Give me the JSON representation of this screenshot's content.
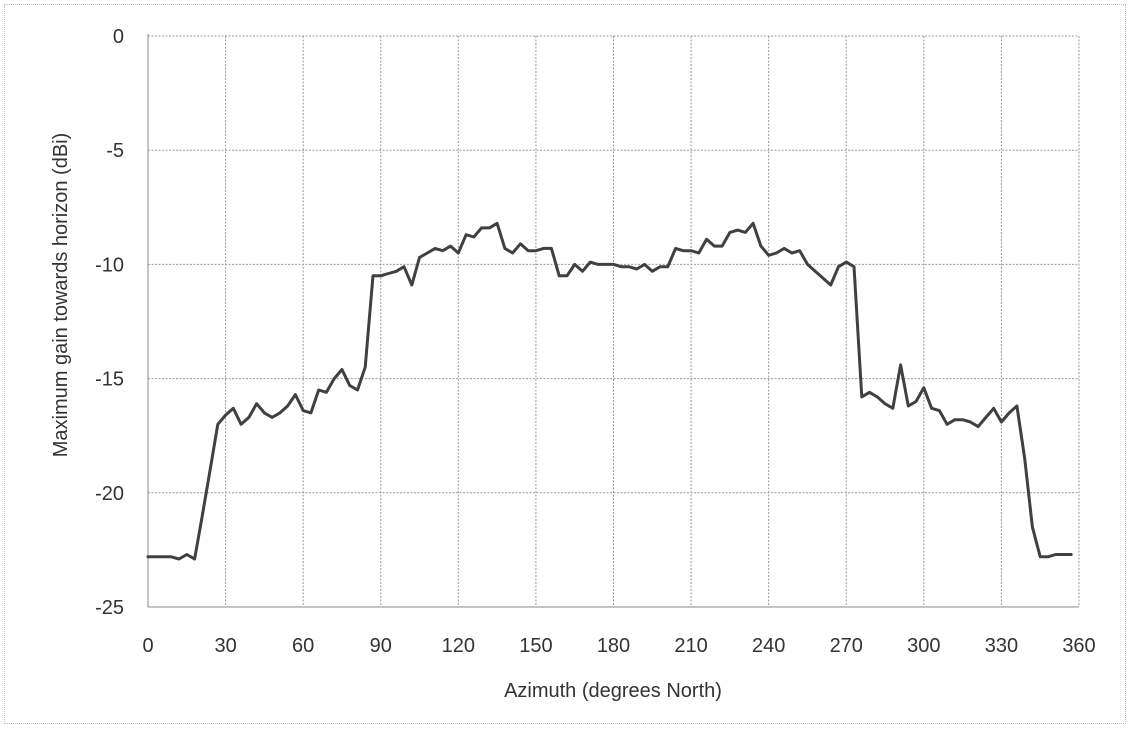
{
  "chart_data": {
    "type": "line",
    "title": "",
    "xlabel": "Azimuth (degrees North)",
    "ylabel": "Maximum gain towards horizon (dBi)",
    "xlim": [
      0,
      360
    ],
    "ylim": [
      -25,
      0
    ],
    "xticks": [
      0,
      30,
      60,
      90,
      120,
      150,
      180,
      210,
      240,
      270,
      300,
      330,
      360
    ],
    "yticks": [
      0,
      -5,
      -10,
      -15,
      -20,
      -25
    ],
    "grid": true,
    "legend": "none",
    "line_color": "#404040",
    "series": [
      {
        "x": [
          0,
          3,
          6,
          9,
          12,
          15,
          18,
          21,
          24,
          27,
          30,
          33,
          36,
          39,
          42,
          45,
          48,
          51,
          54,
          57,
          60,
          63,
          66,
          69,
          72,
          75,
          78,
          81,
          84,
          87,
          90,
          93,
          96,
          99,
          102,
          105,
          108,
          111,
          114,
          117,
          120,
          123,
          126,
          129,
          132,
          135,
          138,
          141,
          144,
          147,
          150,
          153,
          156,
          159,
          162,
          165,
          168,
          171,
          174,
          177,
          180,
          183,
          186,
          189,
          192,
          195,
          198,
          201,
          204,
          207,
          210,
          213,
          216,
          219,
          222,
          225,
          228,
          231,
          234,
          237,
          240,
          243,
          246,
          249,
          252,
          255,
          258,
          261,
          264,
          267,
          270,
          273,
          276,
          279,
          282,
          285,
          288,
          291,
          294,
          297,
          300,
          303,
          306,
          309,
          312,
          315,
          318,
          321,
          324,
          327,
          330,
          333,
          336,
          339,
          342,
          345,
          348,
          351,
          354,
          357
        ],
        "values": [
          -22.8,
          -22.8,
          -22.8,
          -22.8,
          -22.9,
          -22.7,
          -22.9,
          -21.0,
          -19.0,
          -17.0,
          -16.6,
          -16.3,
          -17.0,
          -16.7,
          -16.1,
          -16.5,
          -16.7,
          -16.5,
          -16.2,
          -15.7,
          -16.4,
          -16.5,
          -15.5,
          -15.6,
          -15.0,
          -14.6,
          -15.3,
          -15.5,
          -14.5,
          -10.5,
          -10.5,
          -10.4,
          -10.3,
          -10.1,
          -10.9,
          -9.7,
          -9.5,
          -9.3,
          -9.4,
          -9.2,
          -9.5,
          -8.7,
          -8.8,
          -8.4,
          -8.4,
          -8.2,
          -9.3,
          -9.5,
          -9.1,
          -9.4,
          -9.4,
          -9.3,
          -9.3,
          -10.5,
          -10.5,
          -10.0,
          -10.3,
          -9.9,
          -10.0,
          -10.0,
          -10.0,
          -10.1,
          -10.1,
          -10.2,
          -10.0,
          -10.3,
          -10.1,
          -10.1,
          -9.3,
          -9.4,
          -9.4,
          -9.5,
          -8.9,
          -9.2,
          -9.2,
          -8.6,
          -8.5,
          -8.6,
          -8.2,
          -9.2,
          -9.6,
          -9.5,
          -9.3,
          -9.5,
          -9.4,
          -10.0,
          -10.3,
          -10.6,
          -10.9,
          -10.1,
          -9.9,
          -10.1,
          -15.8,
          -15.6,
          -15.8,
          -16.1,
          -16.3,
          -14.4,
          -16.2,
          -16.0,
          -15.4,
          -16.3,
          -16.4,
          -17.0,
          -16.8,
          -16.8,
          -16.9,
          -17.1,
          -16.7,
          -16.3,
          -16.9,
          -16.5,
          -16.2,
          -18.5,
          -21.5,
          -22.8,
          -22.8,
          -22.7,
          -22.7,
          -22.7
        ]
      }
    ]
  }
}
